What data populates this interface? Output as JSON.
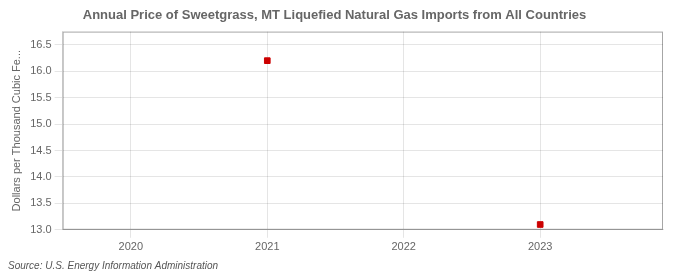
{
  "chart_data": {
    "type": "scatter",
    "title": "Annual Price of Sweetgrass, MT Liquefied Natural Gas Imports from All Countries",
    "y_label": "Dollars per Thousand Cubic Fe...",
    "annotations": [
      "Source: U.S. Energy Information Administration"
    ],
    "x": [
      2021,
      2023
    ],
    "values": [
      16.2,
      13.1
    ],
    "color": "#cc0000",
    "marker": "square",
    "xlim": [
      2019.5,
      2023.9
    ],
    "ylim": [
      13.0,
      16.75
    ],
    "xticks": [
      2020,
      2021,
      2022,
      2023
    ],
    "yticks": [
      {
        "value": 13.0,
        "label": "13.0"
      },
      13.5,
      {
        "value": 14.0,
        "label": "14.0"
      },
      14.5,
      {
        "value": 15.0,
        "label": "15.0"
      },
      15.5,
      {
        "value": 16.0,
        "label": "16.0"
      },
      16.5
    ],
    "grid": true
  }
}
